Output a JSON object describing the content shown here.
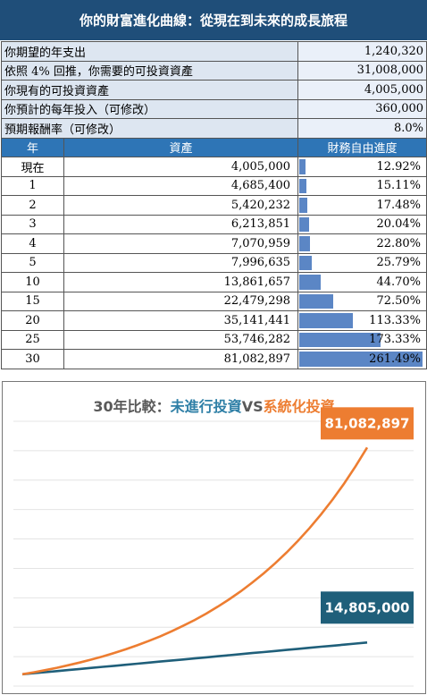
{
  "title": "你的財富進化曲線：從現在到未來的成長旅程",
  "inputs": [
    {
      "label": "你期望的年支出",
      "value": "1,240,320"
    },
    {
      "label": "依照 4% 回推，你需要的可投資資產",
      "value": "31,008,000"
    },
    {
      "label": "你現有的可投資資產",
      "value": "4,005,000"
    },
    {
      "label": "你預計的每年投入（可修改）",
      "value": "360,000"
    },
    {
      "label": "預期報酬率（可修改）",
      "value": "8.0%"
    }
  ],
  "table_headers": {
    "year": "年",
    "assets": "資產",
    "progress": "財務自由進度"
  },
  "rows": [
    {
      "year": "現在",
      "assets": "4,005,000",
      "progress": "12.92%",
      "pct": 12.92
    },
    {
      "year": "1",
      "assets": "4,685,400",
      "progress": "15.11%",
      "pct": 15.11
    },
    {
      "year": "2",
      "assets": "5,420,232",
      "progress": "17.48%",
      "pct": 17.48
    },
    {
      "year": "3",
      "assets": "6,213,851",
      "progress": "20.04%",
      "pct": 20.04
    },
    {
      "year": "4",
      "assets": "7,070,959",
      "progress": "22.80%",
      "pct": 22.8
    },
    {
      "year": "5",
      "assets": "7,996,635",
      "progress": "25.79%",
      "pct": 25.79
    },
    {
      "year": "10",
      "assets": "13,861,657",
      "progress": "44.70%",
      "pct": 44.7
    },
    {
      "year": "15",
      "assets": "22,479,298",
      "progress": "72.50%",
      "pct": 72.5
    },
    {
      "year": "20",
      "assets": "35,141,441",
      "progress": "113.33%",
      "pct": 113.33
    },
    {
      "year": "25",
      "assets": "53,746,282",
      "progress": "173.33%",
      "pct": 173.33
    },
    {
      "year": "30",
      "assets": "81,082,897",
      "progress": "261.49%",
      "pct": 261.49
    }
  ],
  "colors": {
    "header": "#1f4e79",
    "table_header": "#2e75b6",
    "bar": "#5b86c5",
    "blue_series": "#1f5f7a",
    "orange_series": "#ed7d31"
  },
  "chart_data": {
    "type": "line",
    "title_prefix": "30年比較：",
    "title_series1": "未進行投資",
    "title_vs": "VS",
    "title_series2": "系統化投資",
    "x": [
      0,
      1,
      2,
      3,
      4,
      5,
      6,
      7,
      8,
      9,
      10,
      11,
      12,
      13,
      14,
      15,
      16,
      17,
      18,
      19,
      20,
      21,
      22,
      23,
      24,
      25,
      26,
      27,
      28,
      29,
      30
    ],
    "series": [
      {
        "name": "未進行投資",
        "color": "#1f5f7a",
        "end_label": "14,805,000",
        "values": [
          4005000,
          4365000,
          4725000,
          5085000,
          5445000,
          5805000,
          6165000,
          6525000,
          6885000,
          7245000,
          7605000,
          7965000,
          8325000,
          8685000,
          9045000,
          9405000,
          9765000,
          10125000,
          10485000,
          10845000,
          11205000,
          11565000,
          11925000,
          12285000,
          12645000,
          13005000,
          13365000,
          13725000,
          14085000,
          14445000,
          14805000
        ]
      },
      {
        "name": "系統化投資",
        "color": "#ed7d31",
        "end_label": "81,082,897",
        "values": [
          4005000,
          4685400,
          5420232,
          6213851,
          7070959,
          7996635,
          8996366,
          10075675,
          11241729,
          12501067,
          13861657,
          15330590,
          16917038,
          18630401,
          20480833,
          22479298,
          24637642,
          26968654,
          29486147,
          32205039,
          35141441,
          38312756,
          41737777,
          45436799,
          49431743,
          53746282,
          58405985,
          63438664,
          68873757,
          74742657,
          81082897
        ]
      }
    ],
    "grid": true
  }
}
